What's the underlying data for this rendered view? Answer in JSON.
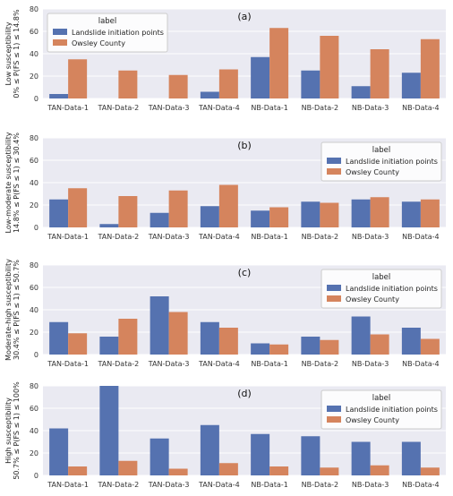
{
  "colors": {
    "landslide": "#5572b0",
    "owsley": "#d5845d",
    "plot_bg": "#eaeaf2",
    "grid": "#ffffff"
  },
  "legend_title": "label",
  "chart_data": [
    {
      "type": "bar",
      "panel_label": "(a)",
      "ylabel_lines": [
        "Low susceptibility",
        "0% ≤ P(FS ≤ 1) ≤ 14.8%"
      ],
      "ylim": [
        0,
        80
      ],
      "yticks": [
        0,
        20,
        40,
        60,
        80
      ],
      "legend_position": "top-left",
      "categories": [
        "TAN-Data-1",
        "TAN-Data-2",
        "TAN-Data-3",
        "TAN-Data-4",
        "NB-Data-1",
        "NB-Data-2",
        "NB-Data-3",
        "NB-Data-4"
      ],
      "series": [
        {
          "name": "Landslide initiation points",
          "color_key": "landslide",
          "values": [
            4,
            0,
            0,
            6,
            37,
            25,
            11,
            23
          ]
        },
        {
          "name": "Owsley County",
          "color_key": "owsley",
          "values": [
            35,
            25,
            21,
            26,
            63,
            56,
            44,
            53
          ]
        }
      ]
    },
    {
      "type": "bar",
      "panel_label": "(b)",
      "ylabel_lines": [
        "Low-moderate susceptibility",
        "14.8% ≤ P(FS ≤ 1) ≤ 30.4%"
      ],
      "ylim": [
        0,
        80
      ],
      "yticks": [
        0,
        20,
        40,
        60,
        80
      ],
      "legend_position": "top-right",
      "categories": [
        "TAN-Data-1",
        "TAN-Data-2",
        "TAN-Data-3",
        "TAN-Data-4",
        "NB-Data-1",
        "NB-Data-2",
        "NB-Data-3",
        "NB-Data-4"
      ],
      "series": [
        {
          "name": "Landslide initiation points",
          "color_key": "landslide",
          "values": [
            25,
            3,
            13,
            19,
            15,
            23,
            25,
            23
          ]
        },
        {
          "name": "Owsley County",
          "color_key": "owsley",
          "values": [
            35,
            28,
            33,
            38,
            18,
            22,
            27,
            25
          ]
        }
      ]
    },
    {
      "type": "bar",
      "panel_label": "(c)",
      "ylabel_lines": [
        "Moderate-high susceptibility",
        "30.4% ≤ P(FS ≤ 1) ≤ 50.7%"
      ],
      "ylim": [
        0,
        80
      ],
      "yticks": [
        0,
        20,
        40,
        60,
        80
      ],
      "legend_position": "top-right",
      "categories": [
        "TAN-Data-1",
        "TAN-Data-2",
        "TAN-Data-3",
        "TAN-Data-4",
        "NB-Data-1",
        "NB-Data-2",
        "NB-Data-3",
        "NB-Data-4"
      ],
      "series": [
        {
          "name": "Landslide initiation points",
          "color_key": "landslide",
          "values": [
            29,
            16,
            52,
            29,
            10,
            16,
            34,
            24
          ]
        },
        {
          "name": "Owsley County",
          "color_key": "owsley",
          "values": [
            19,
            32,
            38,
            24,
            9,
            13,
            18,
            14
          ]
        }
      ]
    },
    {
      "type": "bar",
      "panel_label": "(d)",
      "ylabel_lines": [
        "High susceptibility",
        "50.7% ≤ P(FS ≤ 1) ≤ 100%"
      ],
      "ylim": [
        0,
        80
      ],
      "yticks": [
        0,
        20,
        40,
        60,
        80
      ],
      "legend_position": "top-right",
      "categories": [
        "TAN-Data-1",
        "TAN-Data-2",
        "TAN-Data-3",
        "TAN-Data-4",
        "NB-Data-1",
        "NB-Data-2",
        "NB-Data-3",
        "NB-Data-4"
      ],
      "series": [
        {
          "name": "Landslide initiation points",
          "color_key": "landslide",
          "values": [
            42,
            80,
            33,
            45,
            37,
            35,
            30,
            30
          ]
        },
        {
          "name": "Owsley County",
          "color_key": "owsley",
          "values": [
            8,
            13,
            6,
            11,
            8,
            7,
            9,
            7
          ]
        }
      ]
    }
  ]
}
